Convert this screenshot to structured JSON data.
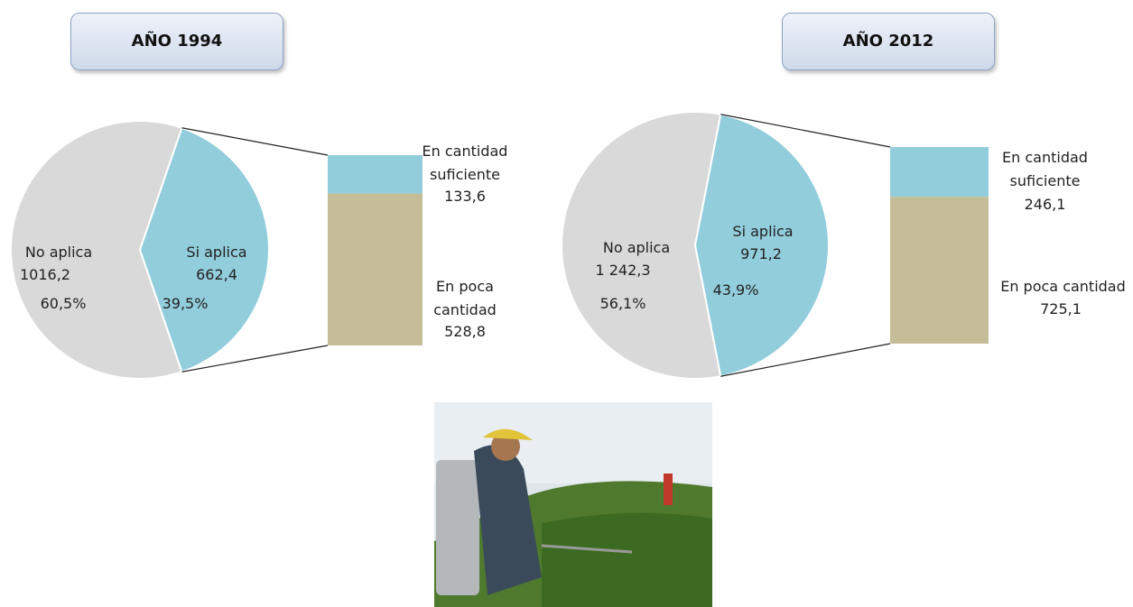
{
  "chart_data": [
    {
      "type": "bar-of-pie",
      "title": "AÑO 1994",
      "categories": [
        "No aplica",
        "Si aplica"
      ],
      "values": [
        1016.2,
        662.4
      ],
      "value_labels": [
        "1016,2",
        "662,4"
      ],
      "percents": [
        60.5,
        39.5
      ],
      "percent_labels": [
        "60,5%",
        "39,5%"
      ],
      "colors": [
        "#d9d9d9",
        "#92cddc"
      ],
      "breakdown": {
        "categories": [
          "En cantidad suficiente",
          "En poca cantidad"
        ],
        "values": [
          133.6,
          528.8
        ],
        "value_labels": [
          "133,6",
          "528,8"
        ],
        "colors": [
          "#92cddc",
          "#c4bd97"
        ]
      }
    },
    {
      "type": "bar-of-pie",
      "title": "AÑO 2012",
      "categories": [
        "No aplica",
        "Si aplica"
      ],
      "values": [
        1242.3,
        971.2
      ],
      "value_labels": [
        "1 242,3",
        "971,2"
      ],
      "percents": [
        56.1,
        43.9
      ],
      "percent_labels": [
        "56,1%",
        "43,9%"
      ],
      "colors": [
        "#d9d9d9",
        "#92cddc"
      ],
      "breakdown": {
        "categories": [
          "En cantidad suficiente",
          "En poca cantidad"
        ],
        "values": [
          246.1,
          725.1
        ],
        "value_labels": [
          "246,1",
          "725,1"
        ],
        "colors": [
          "#92cddc",
          "#c4bd97"
        ]
      }
    }
  ]
}
